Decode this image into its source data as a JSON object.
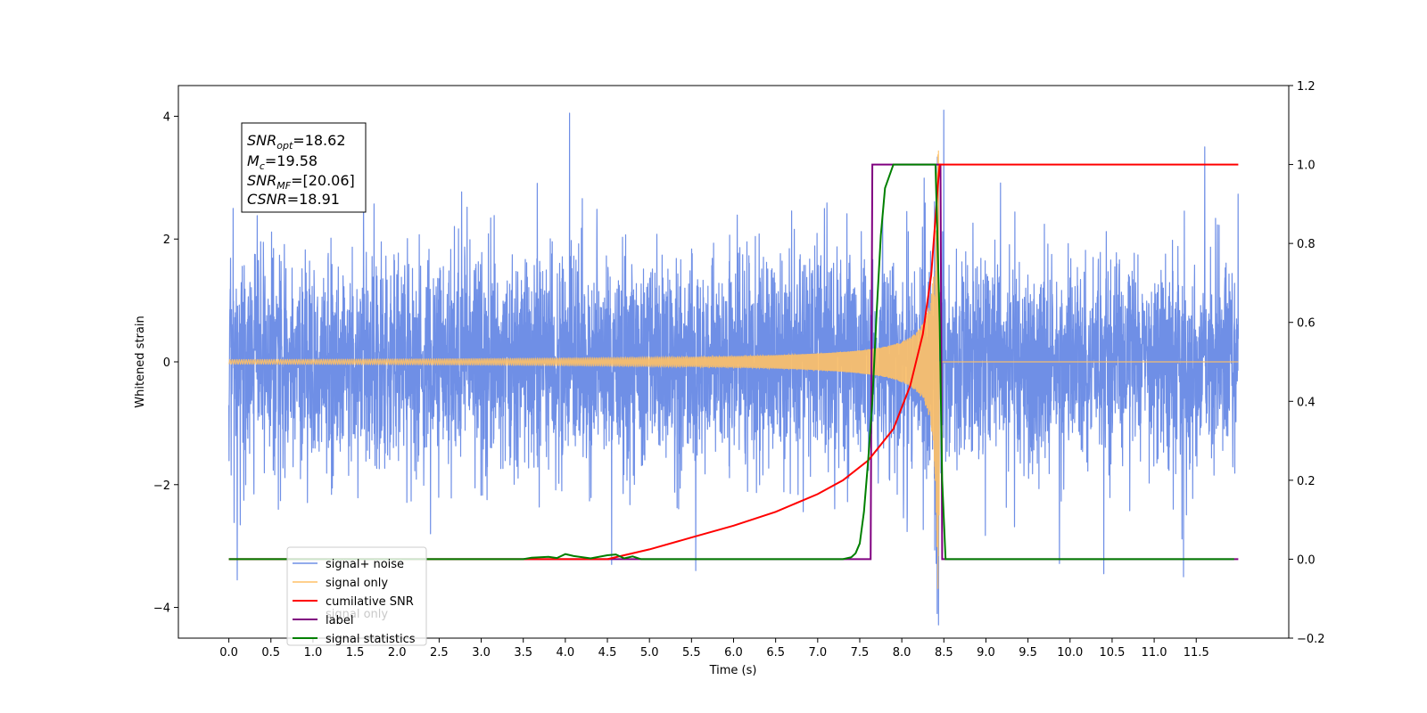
{
  "chart_data": {
    "type": "line",
    "xlabel": "Time (s)",
    "ylabel": "Whitened strain",
    "xlim": [
      -0.6,
      12.6
    ],
    "ylim": [
      -4.5,
      4.5
    ],
    "y2lim": [
      -0.2,
      1.2
    ],
    "x_ticks": [
      "0.0",
      "0.5",
      "1.0",
      "1.5",
      "2.0",
      "2.5",
      "3.0",
      "3.5",
      "4.0",
      "4.5",
      "5.0",
      "5.5",
      "6.0",
      "6.5",
      "7.0",
      "7.5",
      "8.0",
      "8.5",
      "9.0",
      "9.5",
      "10.0",
      "10.5",
      "11.0",
      "11.5"
    ],
    "y_ticks": [
      "4",
      "2",
      "0",
      "−2",
      "−4"
    ],
    "y2_ticks": [
      "1.2",
      "1.0",
      "0.8",
      "0.6",
      "0.4",
      "0.2",
      "0.0",
      "−0.2"
    ],
    "annotation": {
      "lines": [
        {
          "main": "SNR",
          "sub": "opt",
          "rest": "=18.62"
        },
        {
          "main": "M",
          "sub": "c",
          "rest": "=19.58"
        },
        {
          "main": "SNR",
          "sub": "MF",
          "rest": "=[20.06]"
        },
        {
          "main": "CSNR",
          "sub": "",
          "rest": "=18.91"
        }
      ]
    },
    "legend": {
      "placement": "lower-left",
      "entries": [
        "signal+ noise",
        "signal only",
        "cumilative SNR",
        "label",
        "signal statistics"
      ]
    },
    "ghost_legend_text": "signal only",
    "series": [
      {
        "name": "signal+ noise",
        "color": "#6f8fe6",
        "axis": "left",
        "noise_std": 1.0,
        "x_range": [
          0.0,
          12.0
        ],
        "notable_peaks": [
          [
            0.05,
            2.5
          ],
          [
            0.1,
            -3.55
          ],
          [
            4.05,
            4.05
          ],
          [
            4.55,
            -3.3
          ],
          [
            5.55,
            -3.4
          ],
          [
            8.5,
            4.1
          ],
          [
            8.42,
            -4.1
          ],
          [
            10.4,
            -3.45
          ],
          [
            11.35,
            -3.5
          ],
          [
            11.6,
            3.5
          ]
        ]
      },
      {
        "name": "signal only",
        "color": "#ffc166",
        "axis": "left",
        "chirp_end_time": 8.44,
        "peak_amplitude": 3.7,
        "x_range": [
          0.0,
          12.0
        ]
      },
      {
        "name": "cumilative SNR",
        "color": "#ff0000",
        "axis": "right",
        "x": [
          4.5,
          5.0,
          5.5,
          6.0,
          6.5,
          7.0,
          7.3,
          7.6,
          7.9,
          8.1,
          8.25,
          8.35,
          8.43,
          8.45,
          12.0
        ],
        "y": [
          0.0,
          0.025,
          0.055,
          0.085,
          0.12,
          0.165,
          0.2,
          0.25,
          0.33,
          0.44,
          0.57,
          0.72,
          0.95,
          1.0,
          1.0
        ]
      },
      {
        "name": "label",
        "color": "#800080",
        "axis": "right",
        "x": [
          0.0,
          7.63,
          7.65,
          8.46,
          8.48,
          12.0
        ],
        "y": [
          0.0,
          0.0,
          1.0,
          1.0,
          0.0,
          0.0
        ]
      },
      {
        "name": "signal statistics",
        "color": "#008000",
        "axis": "right",
        "x": [
          0.0,
          3.5,
          3.6,
          3.8,
          3.9,
          4.0,
          4.1,
          4.3,
          4.5,
          4.6,
          4.7,
          4.8,
          4.9,
          5.0,
          7.3,
          7.4,
          7.45,
          7.5,
          7.55,
          7.6,
          7.65,
          7.7,
          7.75,
          7.8,
          7.9,
          8.0,
          8.4,
          8.45,
          8.48,
          8.52,
          11.95
        ],
        "y": [
          0.0,
          0.0,
          0.004,
          0.006,
          0.003,
          0.013,
          0.008,
          0.002,
          0.01,
          0.012,
          0.002,
          0.007,
          0.0,
          0.0,
          0.0,
          0.005,
          0.015,
          0.04,
          0.12,
          0.25,
          0.4,
          0.62,
          0.82,
          0.94,
          1.0,
          1.0,
          1.0,
          0.6,
          0.2,
          0.0,
          0.0
        ]
      }
    ]
  }
}
